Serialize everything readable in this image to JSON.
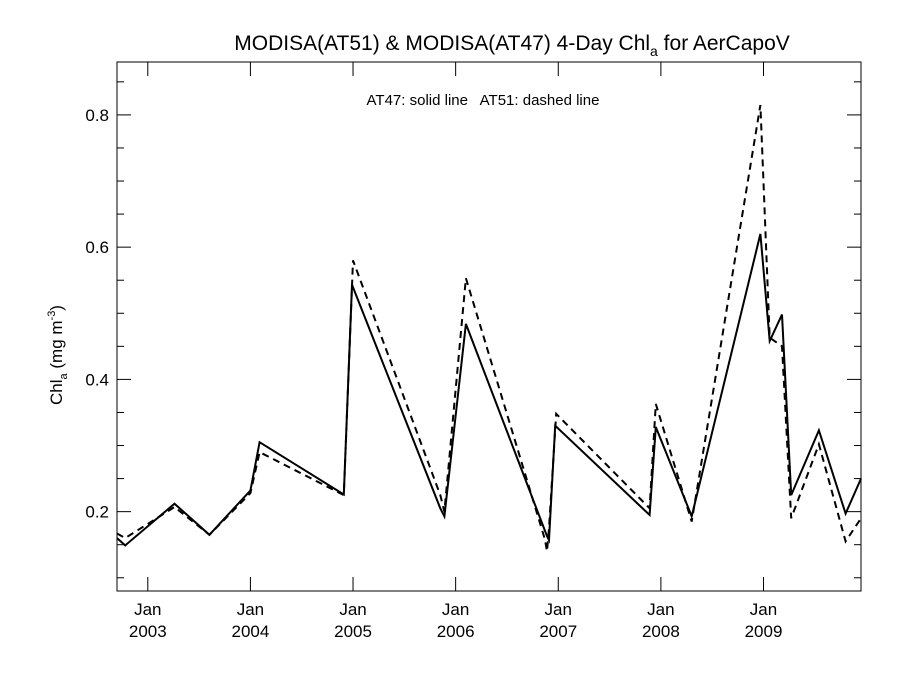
{
  "chart_data": {
    "type": "line",
    "title_main": "MODISA(AT51) & MODISA(AT47) 4-Day Chl",
    "title_sub": "a",
    "title_tail": " for AerCapoV",
    "ylabel_main": "Chl",
    "ylabel_sub": "a",
    "ylabel_units": " (mg m",
    "ylabel_sup": "-3",
    "ylabel_close": ")",
    "annotation": "AT47: solid line   AT51: dashed line",
    "xlim": [
      2002.7,
      2009.95
    ],
    "ylim": [
      0.08,
      0.88
    ],
    "y_ticks": [
      0.2,
      0.4,
      0.6,
      0.8
    ],
    "y_tick_labels": [
      "0.2",
      "0.4",
      "0.6",
      "0.8"
    ],
    "y_minor_step": 0.05,
    "x_ticks": [
      {
        "x": 2003.0,
        "month": "Jan",
        "year": "2003"
      },
      {
        "x": 2004.0,
        "month": "Jan",
        "year": "2004"
      },
      {
        "x": 2005.0,
        "month": "Jan",
        "year": "2005"
      },
      {
        "x": 2006.0,
        "month": "Jan",
        "year": "2006"
      },
      {
        "x": 2007.0,
        "month": "Jan",
        "year": "2007"
      },
      {
        "x": 2008.0,
        "month": "Jan",
        "year": "2008"
      },
      {
        "x": 2009.0,
        "month": "Jan",
        "year": "2009"
      }
    ],
    "series": [
      {
        "name": "AT47",
        "style": "solid",
        "x": [
          2002.7,
          2002.78,
          2003.26,
          2003.6,
          2004.0,
          2004.09,
          2004.91,
          2004.99,
          2005.85,
          2005.89,
          2006.1,
          2006.89,
          2006.91,
          2006.97,
          2007.89,
          2007.95,
          2008.3,
          2008.97,
          2009.06,
          2009.18,
          2009.27,
          2009.54,
          2009.8,
          2009.95
        ],
        "y": [
          0.16,
          0.149,
          0.212,
          0.165,
          0.232,
          0.305,
          0.226,
          0.543,
          0.205,
          0.193,
          0.484,
          0.163,
          0.157,
          0.33,
          0.195,
          0.328,
          0.193,
          0.62,
          0.458,
          0.498,
          0.225,
          0.323,
          0.197,
          0.25
        ]
      },
      {
        "name": "AT51",
        "style": "dashed",
        "x": [
          2002.7,
          2002.78,
          2003.26,
          2003.6,
          2004.0,
          2004.09,
          2004.91,
          2005.0,
          2005.85,
          2005.89,
          2006.1,
          2006.87,
          2006.89,
          2006.91,
          2006.98,
          2007.89,
          2007.95,
          2008.3,
          2008.97,
          2009.06,
          2009.18,
          2009.27,
          2009.54,
          2009.8,
          2009.95
        ],
        "y": [
          0.167,
          0.16,
          0.207,
          0.165,
          0.228,
          0.29,
          0.225,
          0.58,
          0.225,
          0.2,
          0.553,
          0.158,
          0.14,
          0.175,
          0.348,
          0.205,
          0.363,
          0.185,
          0.815,
          0.463,
          0.45,
          0.19,
          0.302,
          0.155,
          0.19
        ]
      }
    ]
  }
}
